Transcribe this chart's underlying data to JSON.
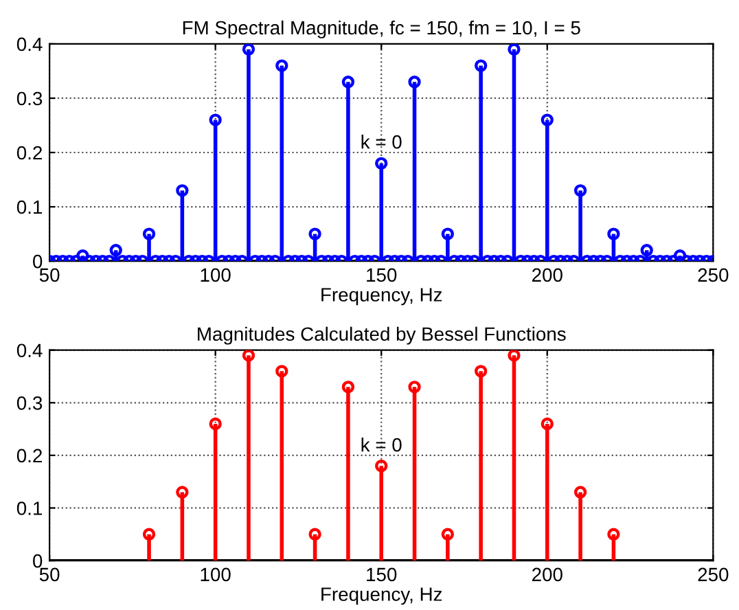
{
  "chart_data": [
    {
      "type": "lollipop",
      "title": "FM Spectral Magnitude, fc = 150, fm = 10, I = 5",
      "xlabel": "Frequency, Hz",
      "xlim": [
        50,
        250
      ],
      "xticks": [
        50,
        100,
        150,
        200,
        250
      ],
      "ylim": [
        0,
        0.4
      ],
      "yticks": [
        0,
        0.1,
        0.2,
        0.3,
        0.4
      ],
      "grid": true,
      "marker": "circle",
      "annotations": [
        {
          "text": "k = 0",
          "x": 150,
          "y": 0.2
        }
      ],
      "series": [
        {
          "color": "#0000ff",
          "x": [
            50,
            52,
            54,
            56,
            58,
            60,
            62,
            64,
            66,
            68,
            70,
            72,
            74,
            76,
            78,
            80,
            82,
            84,
            86,
            88,
            90,
            92,
            94,
            96,
            98,
            100,
            102,
            104,
            106,
            108,
            110,
            112,
            114,
            116,
            118,
            120,
            122,
            124,
            126,
            128,
            130,
            132,
            134,
            136,
            138,
            140,
            142,
            144,
            146,
            148,
            150,
            152,
            154,
            156,
            158,
            160,
            162,
            164,
            166,
            168,
            170,
            172,
            174,
            176,
            178,
            180,
            182,
            184,
            186,
            188,
            190,
            192,
            194,
            196,
            198,
            200,
            202,
            204,
            206,
            208,
            210,
            212,
            214,
            216,
            218,
            220,
            222,
            224,
            226,
            228,
            230,
            232,
            234,
            236,
            238,
            240,
            242,
            244,
            246,
            248,
            250
          ],
          "values": [
            0,
            0,
            0,
            0,
            0,
            0.01,
            0,
            0,
            0,
            0,
            0.02,
            0,
            0,
            0,
            0,
            0.05,
            0,
            0,
            0,
            0,
            0.13,
            0,
            0,
            0,
            0,
            0.26,
            0,
            0,
            0,
            0,
            0.39,
            0,
            0,
            0,
            0,
            0.36,
            0,
            0,
            0,
            0,
            0.05,
            0,
            0,
            0,
            0,
            0.33,
            0,
            0,
            0,
            0,
            0.18,
            0,
            0,
            0,
            0,
            0.33,
            0,
            0,
            0,
            0,
            0.05,
            0,
            0,
            0,
            0,
            0.36,
            0,
            0,
            0,
            0,
            0.39,
            0,
            0,
            0,
            0,
            0.26,
            0,
            0,
            0,
            0,
            0.13,
            0,
            0,
            0,
            0,
            0.05,
            0,
            0,
            0,
            0,
            0.02,
            0,
            0,
            0,
            0,
            0.01,
            0,
            0,
            0,
            0,
            0
          ]
        }
      ]
    },
    {
      "type": "lollipop",
      "title": "Magnitudes Calculated by Bessel Functions",
      "xlabel": "Frequency, Hz",
      "xlim": [
        50,
        250
      ],
      "xticks": [
        50,
        100,
        150,
        200,
        250
      ],
      "ylim": [
        0,
        0.4
      ],
      "yticks": [
        0,
        0.1,
        0.2,
        0.3,
        0.4
      ],
      "grid": true,
      "marker": "circle",
      "annotations": [
        {
          "text": "k = 0",
          "x": 150,
          "y": 0.2
        }
      ],
      "series": [
        {
          "color": "#ff0000",
          "x": [
            80,
            90,
            100,
            110,
            120,
            130,
            140,
            150,
            160,
            170,
            180,
            190,
            200,
            210,
            220
          ],
          "values": [
            0.05,
            0.13,
            0.26,
            0.39,
            0.36,
            0.05,
            0.33,
            0.18,
            0.33,
            0.05,
            0.36,
            0.39,
            0.26,
            0.13,
            0.05
          ]
        }
      ]
    }
  ]
}
